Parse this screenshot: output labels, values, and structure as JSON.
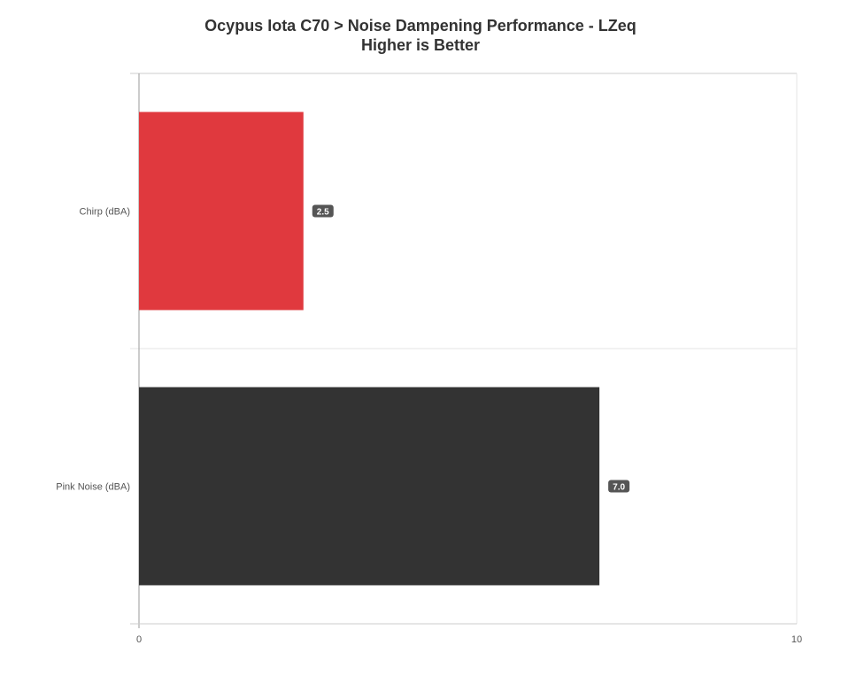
{
  "chart_data": {
    "type": "bar",
    "orientation": "horizontal",
    "title": "Ocypus Iota C70 > Noise Dampening Performance - LZeq",
    "subtitle": "Higher is Better",
    "categories": [
      "Chirp (dBA)",
      "Pink Noise (dBA)"
    ],
    "values": [
      2.5,
      7.0
    ],
    "value_labels": [
      "2.5",
      "7.0"
    ],
    "bar_colors": [
      "#e0393e",
      "#333333"
    ],
    "xlim": [
      0,
      10
    ],
    "x_ticks": [
      "0",
      "10"
    ],
    "grid": true,
    "legend": "none"
  }
}
